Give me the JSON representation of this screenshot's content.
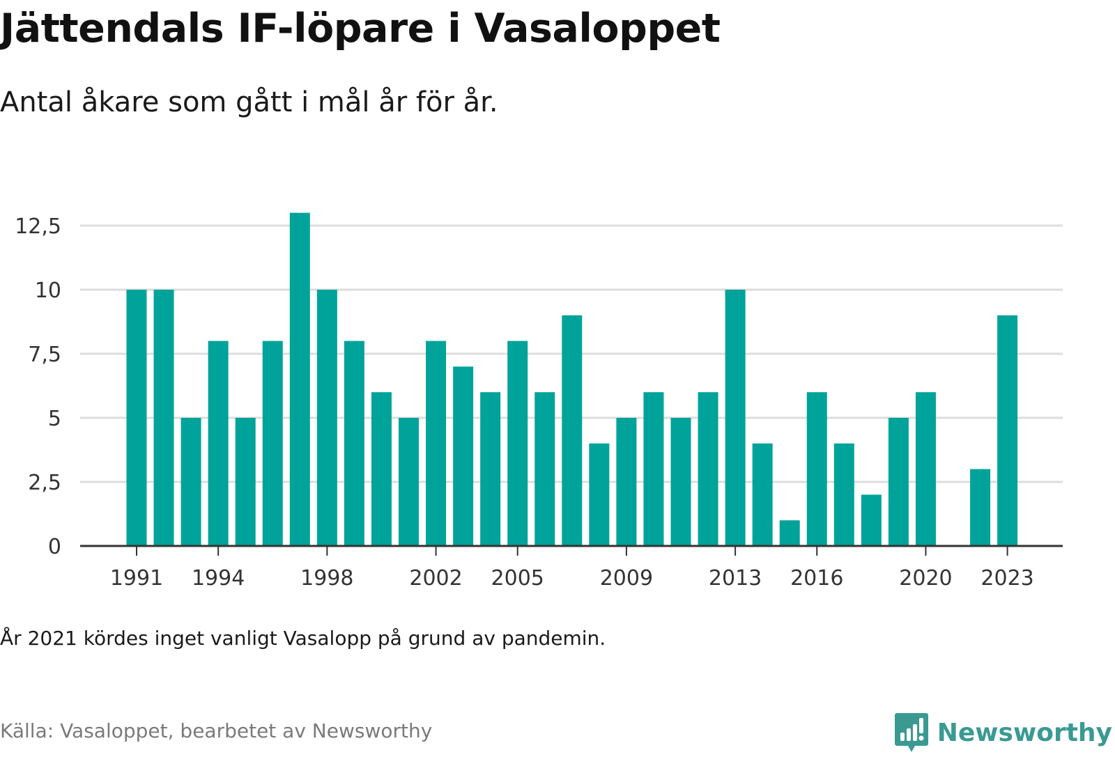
{
  "header": {
    "title": "Jättendals IF-löpare i Vasaloppet",
    "subtitle": "Antal åkare som gått i mål år för år."
  },
  "footer": {
    "note": "År 2021 kördes inget vanligt Vasalopp på grund av pandemin.",
    "source": "Källa: Vasaloppet, bearbetet av Newsworthy",
    "brand_name": "Newsworthy"
  },
  "colors": {
    "bar": "#00a39a",
    "grid": "#dddddd",
    "baseline": "#333333",
    "brand": "#3a9a92"
  },
  "chart_data": {
    "type": "bar",
    "title": "Jättendals IF-löpare i Vasaloppet",
    "subtitle": "Antal åkare som gått i mål år för år.",
    "xlabel": "",
    "ylabel": "",
    "categories": [
      1991,
      1992,
      1993,
      1994,
      1995,
      1996,
      1997,
      1998,
      1999,
      2000,
      2001,
      2002,
      2003,
      2004,
      2005,
      2006,
      2007,
      2008,
      2009,
      2010,
      2011,
      2012,
      2013,
      2014,
      2015,
      2016,
      2017,
      2018,
      2019,
      2020,
      2021,
      2022,
      2023
    ],
    "values": [
      10,
      10,
      5,
      8,
      5,
      8,
      13,
      10,
      8,
      6,
      5,
      8,
      7,
      6,
      8,
      6,
      9,
      4,
      5,
      6,
      5,
      6,
      10,
      4,
      1,
      6,
      4,
      2,
      5,
      6,
      null,
      3,
      9
    ],
    "ylim": [
      0,
      13
    ],
    "yticks": [
      0,
      2.5,
      5,
      7.5,
      10,
      12.5
    ],
    "ytick_labels": [
      "0",
      "2,5",
      "5",
      "7,5",
      "10",
      "12,5"
    ],
    "xticks": [
      1991,
      1994,
      1998,
      2002,
      2005,
      2009,
      2013,
      2016,
      2020,
      2023
    ],
    "xtick_labels": [
      "1991",
      "1994",
      "1998",
      "2002",
      "2005",
      "2009",
      "2013",
      "2016",
      "2020",
      "2023"
    ],
    "grid": true,
    "legend": "none"
  }
}
